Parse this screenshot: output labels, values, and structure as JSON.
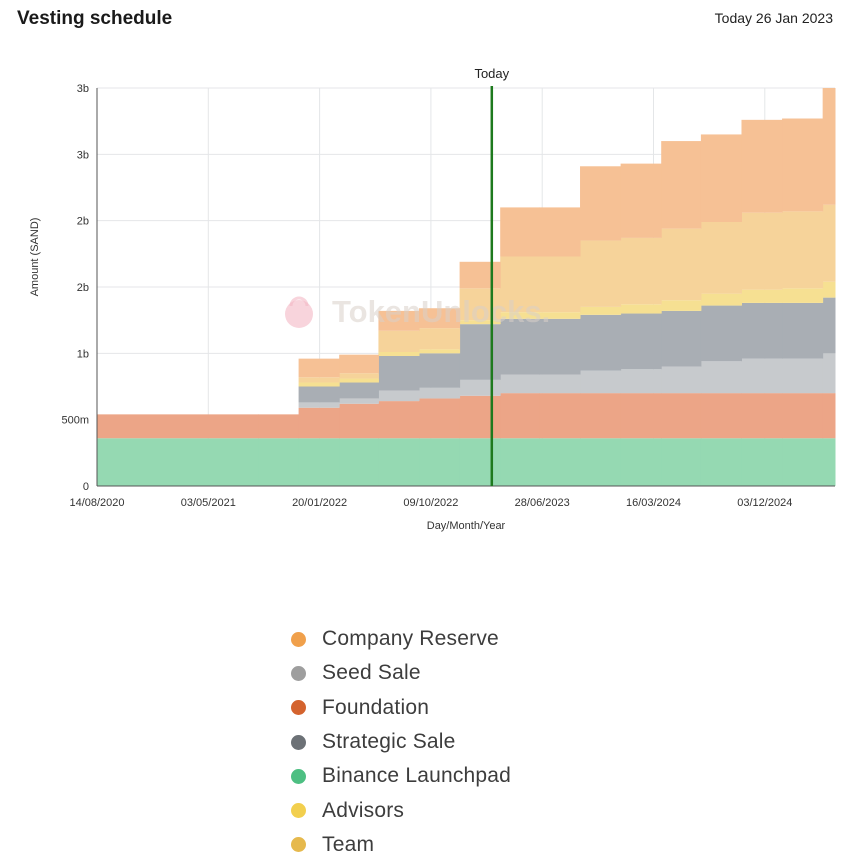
{
  "header": {
    "title": "Vesting schedule",
    "today_label": "Today 26 Jan 2023"
  },
  "watermark": "TokenUnlocks.",
  "chart_data": {
    "type": "area",
    "step": true,
    "stacked": true,
    "title": "Vesting schedule",
    "xlabel": "Day/Month/Year",
    "ylabel": "Amount (SAND)",
    "x_tick_labels": [
      "14/08/2020",
      "03/05/2021",
      "20/01/2022",
      "09/10/2022",
      "28/06/2023",
      "16/03/2024",
      "03/12/2024"
    ],
    "y_tick_labels": [
      "0",
      "500m",
      "1b",
      "2b",
      "2b",
      "3b",
      "3b"
    ],
    "y_tick_values": [
      0,
      500,
      1000,
      1500,
      2000,
      2500,
      3000
    ],
    "ylim": [
      0,
      3000
    ],
    "x_axis_start": "2020-08-14",
    "x_axis_end": "2025-03-14",
    "today": {
      "label": "Today",
      "date": "2023-01-26"
    },
    "step_dates": [
      "2020-08-14",
      "2021-08-14",
      "2021-11-14",
      "2022-02-14",
      "2022-05-14",
      "2022-08-14",
      "2022-11-14",
      "2023-02-14",
      "2023-05-14",
      "2023-08-14",
      "2023-11-14",
      "2024-02-14",
      "2024-05-14",
      "2024-08-14",
      "2024-11-14",
      "2025-02-14"
    ],
    "series": [
      {
        "name": "Binance Launchpad",
        "color": "#95d9b2",
        "values": [
          360,
          360,
          360,
          360,
          360,
          360,
          360,
          360,
          360,
          360,
          360,
          360,
          360,
          360,
          360,
          360
        ]
      },
      {
        "name": "Foundation",
        "color": "#eca587",
        "values": [
          180,
          180,
          230,
          260,
          280,
          300,
          320,
          340,
          340,
          340,
          340,
          340,
          340,
          340,
          340,
          340
        ]
      },
      {
        "name": "Seed Sale",
        "color": "#c7cacd",
        "values": [
          0,
          0,
          40,
          40,
          80,
          80,
          120,
          140,
          140,
          170,
          180,
          200,
          240,
          260,
          260,
          300
        ]
      },
      {
        "name": "Strategic Sale",
        "color": "#a9aeb4",
        "values": [
          0,
          0,
          120,
          120,
          260,
          260,
          420,
          420,
          420,
          420,
          420,
          420,
          420,
          420,
          420,
          420
        ]
      },
      {
        "name": "Advisors",
        "color": "#f6e092",
        "values": [
          0,
          0,
          30,
          30,
          30,
          30,
          30,
          50,
          50,
          60,
          70,
          80,
          90,
          100,
          110,
          120
        ]
      },
      {
        "name": "Team",
        "color": "#f6d39a",
        "values": [
          0,
          0,
          40,
          40,
          160,
          160,
          240,
          420,
          420,
          500,
          500,
          540,
          540,
          580,
          580,
          580
        ]
      },
      {
        "name": "Company Reserve",
        "color": "#f6c195",
        "values": [
          0,
          0,
          140,
          140,
          150,
          150,
          200,
          370,
          370,
          560,
          560,
          660,
          660,
          700,
          700,
          880
        ]
      }
    ]
  },
  "legend": [
    {
      "label": "Company Reserve",
      "color": "#f0a04b"
    },
    {
      "label": "Seed Sale",
      "color": "#9e9e9e"
    },
    {
      "label": "Foundation",
      "color": "#d4632e"
    },
    {
      "label": "Strategic Sale",
      "color": "#6c7176"
    },
    {
      "label": "Binance Launchpad",
      "color": "#4dbf82"
    },
    {
      "label": "Advisors",
      "color": "#f2cf4e"
    },
    {
      "label": "Team",
      "color": "#e6b94d"
    }
  ]
}
